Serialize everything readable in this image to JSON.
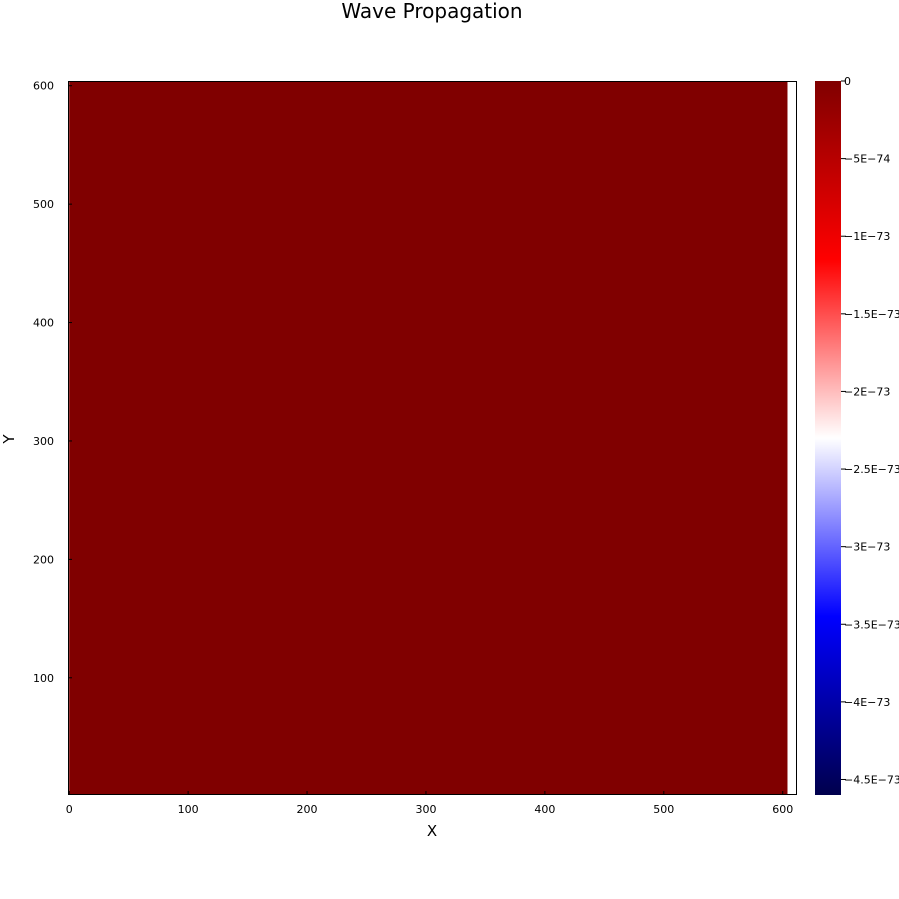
{
  "chart_data": {
    "type": "heatmap",
    "title": "Wave Propagation",
    "xlabel": "X",
    "ylabel": "Y",
    "xlim": [
      -1,
      612
    ],
    "ylim": [
      1,
      604
    ],
    "data_extent": {
      "x": [
        0,
        604
      ],
      "y": [
        0,
        604
      ]
    },
    "x_ticks": [
      {
        "value": 0,
        "label": "0"
      },
      {
        "value": 100,
        "label": "100"
      },
      {
        "value": 200,
        "label": "200"
      },
      {
        "value": 300,
        "label": "300"
      },
      {
        "value": 400,
        "label": "400"
      },
      {
        "value": 500,
        "label": "500"
      },
      {
        "value": 600,
        "label": "600"
      }
    ],
    "y_ticks": [
      {
        "value": 100,
        "label": "100"
      },
      {
        "value": 200,
        "label": "200"
      },
      {
        "value": 300,
        "label": "300"
      },
      {
        "value": 400,
        "label": "400"
      },
      {
        "value": 500,
        "label": "500"
      },
      {
        "value": 600,
        "label": "600"
      }
    ],
    "field_value": 0,
    "field_color": "#800000",
    "grid": false,
    "legend": "none",
    "colorbar": {
      "range": [
        -4.6e-73,
        0
      ],
      "colormap": "seismic",
      "stops": [
        {
          "value": -4.6e-73,
          "color": "#00004d"
        },
        {
          "value": -3.45e-73,
          "color": "#0000ff"
        },
        {
          "value": -2.3e-73,
          "color": "#ffffff"
        },
        {
          "value": -1.15e-73,
          "color": "#ff0000"
        },
        {
          "value": 0,
          "color": "#800000"
        }
      ],
      "ticks": [
        {
          "value": 0,
          "label": "0"
        },
        {
          "value": -5e-74,
          "label": "−5E−74"
        },
        {
          "value": -1e-73,
          "label": "−1E−73"
        },
        {
          "value": -1.5e-73,
          "label": "−1.5E−73"
        },
        {
          "value": -2e-73,
          "label": "−2E−73"
        },
        {
          "value": -2.5e-73,
          "label": "−2.5E−73"
        },
        {
          "value": -3e-73,
          "label": "−3E−73"
        },
        {
          "value": -3.5e-73,
          "label": "−3.5E−73"
        },
        {
          "value": -4e-73,
          "label": "−4E−73"
        },
        {
          "value": -4.5e-73,
          "label": "−4.5E−73"
        }
      ]
    }
  }
}
